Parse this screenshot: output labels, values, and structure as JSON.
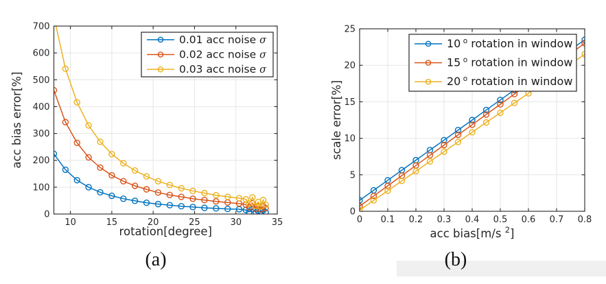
{
  "figure": {
    "background": "#ffffff",
    "panels": [
      {
        "caption": "(a)"
      },
      {
        "caption": "(b)"
      }
    ]
  },
  "colors": {
    "blue": "#0072BD",
    "orange": "#D95319",
    "yellow": "#EDB120",
    "grid": "#E6E6E6",
    "axis": "#262626",
    "text": "#262626",
    "legend_border": "#262626",
    "legend_background": "#FFFFFF",
    "caption_band": "#F0F0F0"
  },
  "chart_data": [
    {
      "id": "acc-bias-error-vs-rotation",
      "type": "line",
      "title": "",
      "xlabel": "rotation[degree]",
      "ylabel": "acc bias error[%]",
      "xlim": [
        8,
        35
      ],
      "ylim": [
        0,
        700
      ],
      "xticks": [
        10,
        15,
        20,
        25,
        30,
        35
      ],
      "yticks": [
        0,
        100,
        200,
        300,
        400,
        500,
        600,
        700
      ],
      "grid": true,
      "legend": {
        "location": "upper-right-inside",
        "items": [
          {
            "label": "0.01 acc noise",
            "suffix_italic": "σ",
            "color": "#0072BD"
          },
          {
            "label": "0.02 acc noise",
            "suffix_italic": "σ",
            "color": "#D95319"
          },
          {
            "label": "0.03 acc noise",
            "suffix_italic": "σ",
            "color": "#EDB120"
          }
        ]
      },
      "series": [
        {
          "name": "0.01 acc noise σ",
          "color": "#0072BD",
          "marker": "circle",
          "x": [
            8,
            9.4,
            10.8,
            12.2,
            13.6,
            15,
            16.4,
            17.8,
            19.2,
            20.6,
            22,
            23.4,
            24.8,
            26.2,
            27.6,
            29,
            30.4,
            31.2,
            31.6,
            32,
            32.4,
            32.7,
            33,
            33.3,
            33.6
          ],
          "y": [
            224,
            165,
            126,
            100,
            81,
            68,
            57,
            49,
            42,
            37,
            33,
            29,
            26,
            23,
            21,
            19,
            18,
            15,
            8,
            18,
            6,
            12,
            9,
            14,
            7
          ]
        },
        {
          "name": "0.02 acc noise σ",
          "color": "#D95319",
          "marker": "circle",
          "x": [
            8,
            9.4,
            10.8,
            12.2,
            13.6,
            15,
            16.4,
            17.8,
            19.2,
            20.6,
            22,
            23.4,
            24.8,
            26.2,
            27.6,
            29,
            30.4,
            31.2,
            31.6,
            32,
            32.4,
            32.7,
            33,
            33.3,
            33.6
          ],
          "y": [
            461,
            342,
            265,
            211,
            173,
            144,
            122,
            105,
            92,
            80,
            71,
            64,
            57,
            52,
            47,
            43,
            39,
            35,
            25,
            40,
            20,
            30,
            18,
            28,
            22
          ]
        },
        {
          "name": "0.03 acc noise σ",
          "color": "#EDB120",
          "marker": "circle",
          "x": [
            8,
            9.4,
            10.8,
            12.2,
            13.6,
            15,
            16.4,
            17.8,
            19.2,
            20.6,
            22,
            23.4,
            24.8,
            26.2,
            27.6,
            29,
            30.4,
            31.2,
            31.6,
            32,
            32.4,
            32.7,
            33,
            33.3,
            33.6
          ],
          "y": [
            735,
            541,
            416,
            330,
            269,
            223,
            189,
            162,
            140,
            122,
            108,
            96,
            86,
            78,
            70,
            64,
            59,
            55,
            38,
            62,
            30,
            45,
            28,
            52,
            35
          ]
        }
      ]
    },
    {
      "id": "scale-error-vs-acc-bias",
      "type": "line",
      "title": "",
      "xlabel": "acc bias[m/s²]",
      "xlabel_parts": {
        "main": "acc bias[m/s ",
        "sup": "2",
        "end": "]"
      },
      "ylabel": "scale error[%]",
      "xlim": [
        0,
        0.8
      ],
      "ylim": [
        0,
        25
      ],
      "xticks": [
        0,
        0.1,
        0.2,
        0.3,
        0.4,
        0.5,
        0.6,
        0.7,
        0.8
      ],
      "yticks": [
        0,
        5,
        10,
        15,
        20,
        25
      ],
      "grid": true,
      "legend": {
        "location": "upper-center-inside",
        "items": [
          {
            "label_num": "10",
            "label_sup": "o",
            "label_rest": " rotation in window",
            "color": "#0072BD"
          },
          {
            "label_num": "15",
            "label_sup": "o",
            "label_rest": " rotation in window",
            "color": "#D95319"
          },
          {
            "label_num": "20",
            "label_sup": "o",
            "label_rest": " rotation in window",
            "color": "#EDB120"
          }
        ]
      },
      "series": [
        {
          "name": "10° rotation in window",
          "color": "#0072BD",
          "marker": "circle",
          "x": [
            0,
            0.05,
            0.1,
            0.15,
            0.2,
            0.25,
            0.3,
            0.35,
            0.4,
            0.45,
            0.5,
            0.55,
            0.6,
            0.65,
            0.7,
            0.75,
            0.8
          ],
          "y": [
            1.5,
            2.88,
            4.25,
            5.63,
            7,
            8.38,
            9.75,
            11.13,
            12.5,
            13.88,
            15.25,
            16.63,
            18,
            19.38,
            20.75,
            22.13,
            23.5
          ]
        },
        {
          "name": "15° rotation in window",
          "color": "#D95319",
          "marker": "circle",
          "x": [
            0,
            0.05,
            0.1,
            0.15,
            0.2,
            0.25,
            0.3,
            0.35,
            0.4,
            0.45,
            0.5,
            0.55,
            0.6,
            0.65,
            0.7,
            0.75,
            0.8
          ],
          "y": [
            0.7,
            2.1,
            3.49,
            4.89,
            6.28,
            7.68,
            9.07,
            10.47,
            11.86,
            13.26,
            14.65,
            16.05,
            17.44,
            18.84,
            20.23,
            21.63,
            23.02
          ]
        },
        {
          "name": "20° rotation in window",
          "color": "#EDB120",
          "marker": "circle",
          "x": [
            0,
            0.05,
            0.1,
            0.15,
            0.2,
            0.25,
            0.3,
            0.35,
            0.4,
            0.45,
            0.5,
            0.55,
            0.6,
            0.65,
            0.7,
            0.75,
            0.8
          ],
          "y": [
            0.15,
            1.49,
            2.82,
            4.16,
            5.49,
            6.83,
            8.16,
            9.5,
            10.83,
            12.17,
            13.5,
            14.84,
            16.17,
            17.51,
            18.84,
            20.18,
            21.51
          ]
        }
      ]
    }
  ]
}
